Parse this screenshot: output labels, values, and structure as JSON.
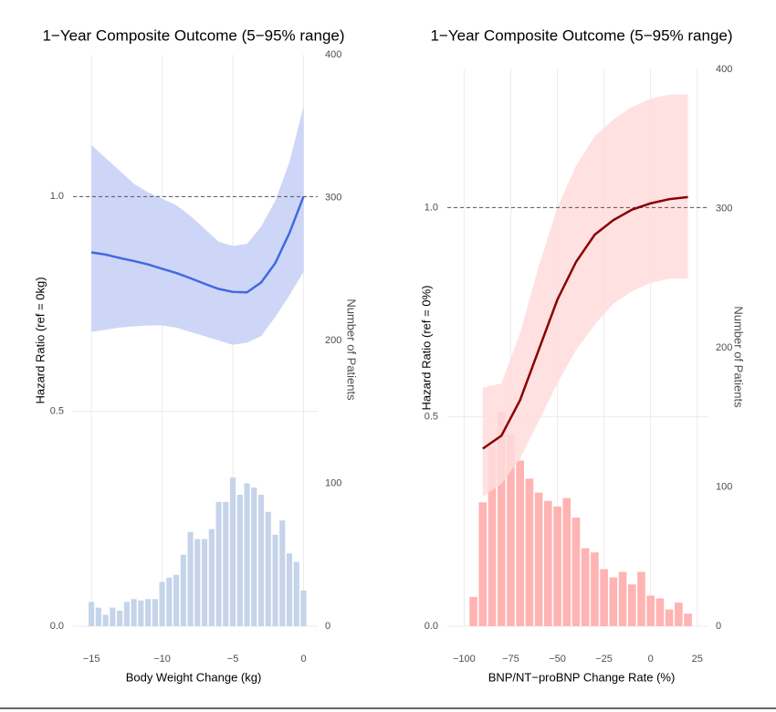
{
  "chart_data": [
    {
      "type": "line",
      "title": "1−Year Composite Outcome (5−95% range)",
      "x_label": "Body Weight Change (kg)",
      "y_label": "Hazard Ratio (ref = 0kg)",
      "y2_label": "Number of Patients",
      "xlim": [
        -16.3,
        1.0
      ],
      "ylim": [
        0,
        1.33
      ],
      "y2lim": [
        0,
        400
      ],
      "xticks": [
        {
          "value": -15,
          "label": "−15"
        },
        {
          "value": -10,
          "label": "−10"
        },
        {
          "value": -5,
          "label": "−5"
        },
        0
      ],
      "yticks": [
        {
          "value": 0,
          "label": "0.0"
        },
        {
          "value": 0.5,
          "label": "0.5"
        },
        {
          "value": 1,
          "label": "1.0"
        }
      ],
      "y2ticks": [
        0,
        100,
        200,
        300,
        400
      ],
      "grid": true,
      "hline": 1,
      "line": {
        "x": [
          -15,
          -14,
          -13,
          -12,
          -11,
          -10,
          -9,
          -8,
          -7,
          -6,
          -5,
          -4,
          -3,
          -2,
          -1,
          0
        ],
        "values": [
          0.87,
          0.865,
          0.857,
          0.85,
          0.842,
          0.832,
          0.822,
          0.81,
          0.797,
          0.785,
          0.778,
          0.777,
          0.8,
          0.845,
          0.915,
          1.0
        ],
        "upper": [
          1.12,
          1.09,
          1.06,
          1.03,
          1.01,
          0.995,
          0.98,
          0.955,
          0.925,
          0.895,
          0.885,
          0.89,
          0.93,
          0.99,
          1.08,
          1.21
        ],
        "lower": [
          0.685,
          0.69,
          0.695,
          0.698,
          0.7,
          0.7,
          0.695,
          0.685,
          0.675,
          0.665,
          0.655,
          0.66,
          0.675,
          0.72,
          0.77,
          0.825
        ],
        "color": "#4169e1",
        "band_color": "#c6cff6"
      },
      "histogram": {
        "axis": "y2",
        "color": "#c5d4ea",
        "bins": [
          -15.25,
          -14.75,
          -14.25,
          -13.75,
          -13.25,
          -12.75,
          -12.25,
          -11.75,
          -11.25,
          -10.75,
          -10.25,
          -9.75,
          -9.25,
          -8.75,
          -8.25,
          -7.75,
          -7.25,
          -6.75,
          -6.25,
          -5.75,
          -5.25,
          -4.75,
          -4.25,
          -3.75,
          -3.25,
          -2.75,
          -2.25,
          -1.75,
          -1.25,
          -0.75,
          -0.25,
          0.25
        ],
        "counts": [
          17,
          13,
          8,
          13,
          11,
          17,
          19,
          18,
          19,
          19,
          31,
          34,
          36,
          50,
          66,
          61,
          61,
          68,
          87,
          87,
          104,
          92,
          100,
          97,
          92,
          80,
          64,
          74,
          51,
          45,
          25
        ]
      }
    },
    {
      "type": "line",
      "title": "1−Year Composite Outcome (5−95% range)",
      "x_label": "BNP/NT−proBNP Change Rate (%)",
      "y_label": "Hazard Ratio (ref = 0%)",
      "y2_label": "Number of Patients",
      "xlim": [
        -109,
        31
      ],
      "ylim": [
        0,
        1.33
      ],
      "y2lim": [
        0,
        400
      ],
      "xticks": [
        {
          "value": -100,
          "label": "−100"
        },
        {
          "value": -75,
          "label": "−75"
        },
        {
          "value": -50,
          "label": "−50"
        },
        {
          "value": -25,
          "label": "−25"
        },
        0,
        25
      ],
      "yticks": [
        {
          "value": 0,
          "label": "0.0"
        },
        {
          "value": 0.5,
          "label": "0.5"
        },
        {
          "value": 1,
          "label": "1.0"
        }
      ],
      "y2ticks": [
        0,
        100,
        200,
        300,
        400
      ],
      "grid": true,
      "hline": 1,
      "line": {
        "x": [
          -90,
          -80,
          -70,
          -60,
          -50,
          -40,
          -30,
          -20,
          -10,
          0,
          10,
          20
        ],
        "values": [
          0.424,
          0.455,
          0.54,
          0.66,
          0.78,
          0.87,
          0.935,
          0.97,
          0.995,
          1.01,
          1.02,
          1.025
        ],
        "upper": [
          0.57,
          0.58,
          0.7,
          0.86,
          1.0,
          1.1,
          1.17,
          1.21,
          1.24,
          1.26,
          1.27,
          1.27
        ],
        "lower": [
          0.31,
          0.34,
          0.4,
          0.49,
          0.58,
          0.66,
          0.72,
          0.77,
          0.8,
          0.82,
          0.83,
          0.83
        ],
        "color": "#8b0000",
        "band_color": "#ffdcdc"
      },
      "histogram": {
        "axis": "y2",
        "color": "#ffb3b3",
        "bins": [
          -97.5,
          -92.5,
          -87.5,
          -82.5,
          -77.5,
          -72.5,
          -67.5,
          -62.5,
          -57.5,
          -52.5,
          -47.5,
          -42.5,
          -37.5,
          -32.5,
          -27.5,
          -22.5,
          -17.5,
          -12.5,
          -7.5,
          -2.5,
          2.5,
          7.5,
          12.5,
          17.5,
          22.5
        ],
        "counts": [
          21,
          89,
          129,
          154,
          138,
          119,
          106,
          96,
          90,
          86,
          92,
          78,
          56,
          53,
          41,
          35,
          39,
          30,
          39,
          22,
          20,
          12,
          17,
          9
        ]
      }
    }
  ]
}
